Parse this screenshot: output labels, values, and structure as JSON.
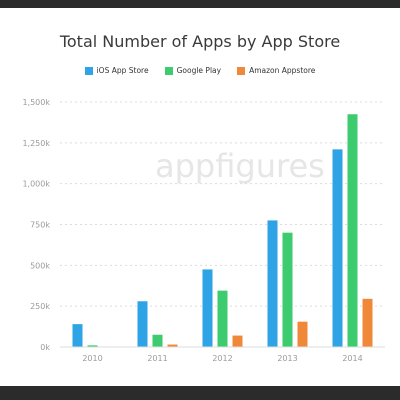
{
  "watermark": "appfigures",
  "chart_data": {
    "type": "bar",
    "title": "Total Number of Apps by App Store",
    "xlabel": "",
    "ylabel": "",
    "categories": [
      "2010",
      "2011",
      "2012",
      "2013",
      "2014"
    ],
    "ylim": [
      0,
      1500000
    ],
    "yticks": [
      {
        "value": 0,
        "label": "0k"
      },
      {
        "value": 250000,
        "label": "250k"
      },
      {
        "value": 500000,
        "label": "500k"
      },
      {
        "value": 750000,
        "label": "750k"
      },
      {
        "value": 1000000,
        "label": "1,000k"
      },
      {
        "value": 1250000,
        "label": "1,250k"
      },
      {
        "value": 1500000,
        "label": "1,500k"
      }
    ],
    "grid": true,
    "legend_position": "top-center",
    "series": [
      {
        "name": "iOS App Store",
        "color": "#2ea3e6",
        "values": [
          140000,
          280000,
          475000,
          775000,
          1210000
        ]
      },
      {
        "name": "Google Play",
        "color": "#3ccb6e",
        "values": [
          10000,
          75000,
          345000,
          700000,
          1425000
        ]
      },
      {
        "name": "Amazon Appstore",
        "color": "#f0883a",
        "values": [
          0,
          15000,
          70000,
          155000,
          295000
        ]
      }
    ]
  }
}
